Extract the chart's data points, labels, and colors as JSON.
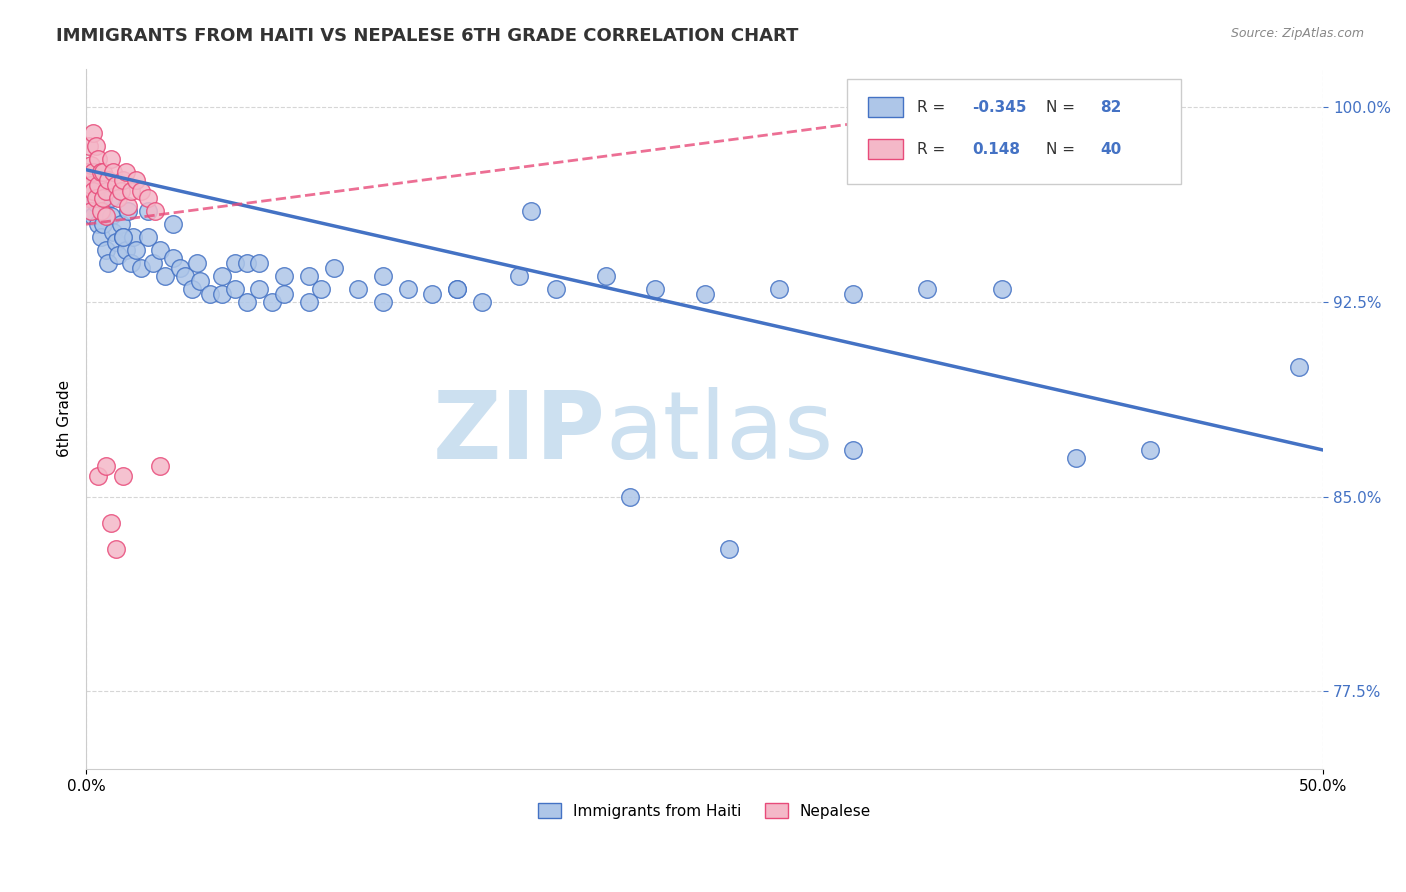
{
  "title": "IMMIGRANTS FROM HAITI VS NEPALESE 6TH GRADE CORRELATION CHART",
  "source_text": "Source: ZipAtlas.com",
  "ylabel": "6th Grade",
  "xmin": 0.0,
  "xmax": 0.5,
  "ymin": 0.745,
  "ymax": 1.015,
  "yticks": [
    0.775,
    0.85,
    0.925,
    1.0
  ],
  "ytick_labels": [
    "77.5%",
    "85.0%",
    "92.5%",
    "100.0%"
  ],
  "xtick_labels": [
    "0.0%",
    "50.0%"
  ],
  "xticks": [
    0.0,
    0.5
  ],
  "legend_entries": [
    {
      "label": "Immigrants from Haiti",
      "R": "-0.345",
      "N": "82"
    },
    {
      "label": "Nepalese",
      "R": "0.148",
      "N": "40"
    }
  ],
  "blue_scatter_x": [
    0.001,
    0.001,
    0.002,
    0.002,
    0.003,
    0.003,
    0.004,
    0.004,
    0.005,
    0.005,
    0.006,
    0.006,
    0.007,
    0.007,
    0.008,
    0.009,
    0.01,
    0.01,
    0.011,
    0.012,
    0.013,
    0.014,
    0.015,
    0.016,
    0.017,
    0.018,
    0.019,
    0.02,
    0.022,
    0.025,
    0.027,
    0.03,
    0.032,
    0.035,
    0.038,
    0.04,
    0.043,
    0.046,
    0.05,
    0.055,
    0.06,
    0.065,
    0.07,
    0.075,
    0.08,
    0.09,
    0.095,
    0.1,
    0.11,
    0.12,
    0.13,
    0.14,
    0.15,
    0.16,
    0.175,
    0.19,
    0.21,
    0.23,
    0.25,
    0.28,
    0.31,
    0.34,
    0.37,
    0.4,
    0.43,
    0.015,
    0.025,
    0.035,
    0.045,
    0.055,
    0.06,
    0.065,
    0.07,
    0.08,
    0.09,
    0.12,
    0.15,
    0.18,
    0.22,
    0.26,
    0.31,
    0.49
  ],
  "blue_scatter_y": [
    0.965,
    0.97,
    0.96,
    0.968,
    0.958,
    0.972,
    0.963,
    0.975,
    0.955,
    0.968,
    0.95,
    0.962,
    0.955,
    0.96,
    0.945,
    0.94,
    0.958,
    0.965,
    0.952,
    0.948,
    0.943,
    0.955,
    0.95,
    0.945,
    0.96,
    0.94,
    0.95,
    0.945,
    0.938,
    0.95,
    0.94,
    0.945,
    0.935,
    0.942,
    0.938,
    0.935,
    0.93,
    0.933,
    0.928,
    0.928,
    0.93,
    0.925,
    0.93,
    0.925,
    0.928,
    0.925,
    0.93,
    0.938,
    0.93,
    0.925,
    0.93,
    0.928,
    0.93,
    0.925,
    0.935,
    0.93,
    0.935,
    0.93,
    0.928,
    0.93,
    0.928,
    0.93,
    0.93,
    0.865,
    0.868,
    0.95,
    0.96,
    0.955,
    0.94,
    0.935,
    0.94,
    0.94,
    0.94,
    0.935,
    0.935,
    0.935,
    0.93,
    0.96,
    0.85,
    0.83,
    0.868,
    0.9
  ],
  "pink_scatter_x": [
    0.0005,
    0.001,
    0.001,
    0.001,
    0.002,
    0.002,
    0.002,
    0.003,
    0.003,
    0.003,
    0.004,
    0.004,
    0.005,
    0.005,
    0.006,
    0.006,
    0.007,
    0.007,
    0.008,
    0.008,
    0.009,
    0.01,
    0.011,
    0.012,
    0.013,
    0.014,
    0.015,
    0.016,
    0.017,
    0.018,
    0.02,
    0.022,
    0.025,
    0.028,
    0.03,
    0.005,
    0.008,
    0.01,
    0.012,
    0.015
  ],
  "pink_scatter_y": [
    0.975,
    0.972,
    0.965,
    0.985,
    0.97,
    0.96,
    0.978,
    0.968,
    0.975,
    0.99,
    0.965,
    0.985,
    0.97,
    0.98,
    0.96,
    0.975,
    0.965,
    0.975,
    0.958,
    0.968,
    0.972,
    0.98,
    0.975,
    0.97,
    0.965,
    0.968,
    0.972,
    0.975,
    0.962,
    0.968,
    0.972,
    0.968,
    0.965,
    0.96,
    0.862,
    0.858,
    0.862,
    0.84,
    0.83,
    0.858
  ],
  "blue_trendline_x": [
    0.0,
    0.5
  ],
  "blue_trendline_y": [
    0.976,
    0.868
  ],
  "pink_trendline_x": [
    0.0,
    0.4
  ],
  "pink_trendline_y": [
    0.955,
    1.005
  ],
  "blue_color": "#4472c4",
  "pink_color": "#e84b7a",
  "blue_fill": "#aec6e8",
  "pink_fill": "#f4b8c8",
  "background_color": "#ffffff",
  "grid_color": "#cccccc",
  "watermark_zip": "ZIP",
  "watermark_atlas": "atlas",
  "watermark_color": "#cce0f0"
}
